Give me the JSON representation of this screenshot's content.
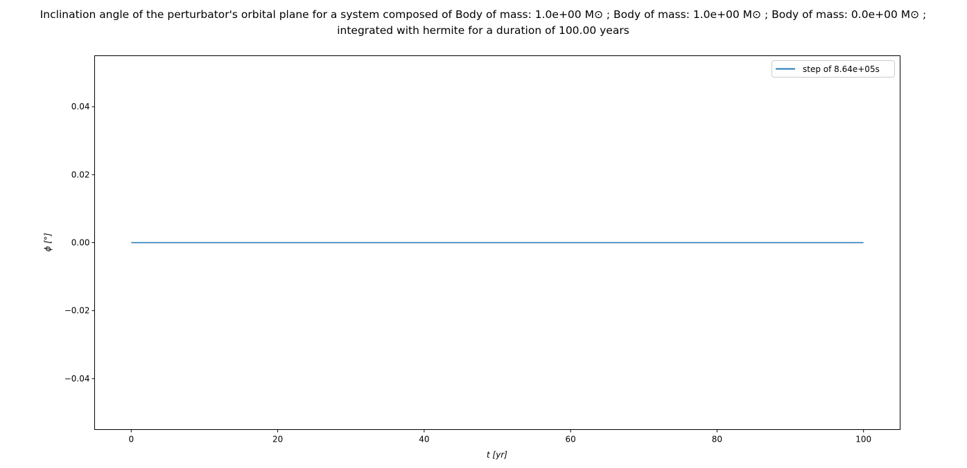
{
  "chart_data": {
    "type": "line",
    "title_lines": [
      "Inclination angle of the perturbator's orbital plane for a system composed of Body of mass: 1.0e+00 M⊙ ; Body of mass: 1.0e+00 M⊙ ; Body of mass: 0.0e+00 M⊙ ;",
      "integrated with hermite for a duration of 100.00 years"
    ],
    "xlabel": "t [yr]",
    "ylabel": "ϕ [°]",
    "xlim": [
      -5,
      105
    ],
    "ylim": [
      -0.055,
      0.055
    ],
    "xticks": [
      0,
      20,
      40,
      60,
      80,
      100
    ],
    "xtick_labels": [
      "0",
      "20",
      "40",
      "60",
      "80",
      "100"
    ],
    "yticks": [
      0.04,
      0.02,
      0.0,
      -0.02,
      -0.04
    ],
    "ytick_labels": [
      "0.04",
      "0.02",
      "0.00",
      "−0.02",
      "−0.04"
    ],
    "grid": false,
    "legend_position": "top-right",
    "series": [
      {
        "name": "step of 8.64e+05s",
        "color": "#1f77b4",
        "x": [
          0,
          100
        ],
        "y": [
          0.0,
          0.0
        ]
      }
    ]
  }
}
